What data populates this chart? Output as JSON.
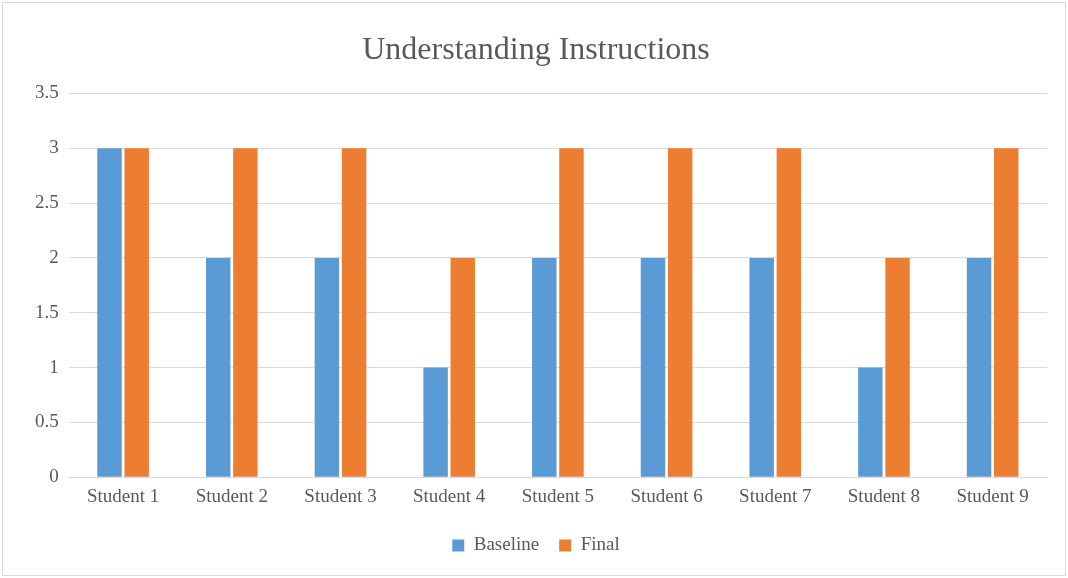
{
  "chart_data": {
    "type": "bar",
    "title": "Understanding Instructions",
    "categories": [
      "Student 1",
      "Student 2",
      "Student 3",
      "Student 4",
      "Student 5",
      "Student 6",
      "Student 7",
      "Student 8",
      "Student 9"
    ],
    "series": [
      {
        "name": "Baseline",
        "color": "#5b9bd5",
        "values": [
          3,
          2,
          2,
          1,
          2,
          2,
          2,
          1,
          2
        ]
      },
      {
        "name": "Final",
        "color": "#ed7d31",
        "values": [
          3,
          3,
          3,
          2,
          3,
          3,
          3,
          2,
          3
        ]
      }
    ],
    "ylim": [
      0,
      3.5
    ],
    "yticks": [
      0,
      0.5,
      1,
      1.5,
      2,
      2.5,
      3,
      3.5
    ],
    "grid": "y",
    "legend": "bottom"
  }
}
